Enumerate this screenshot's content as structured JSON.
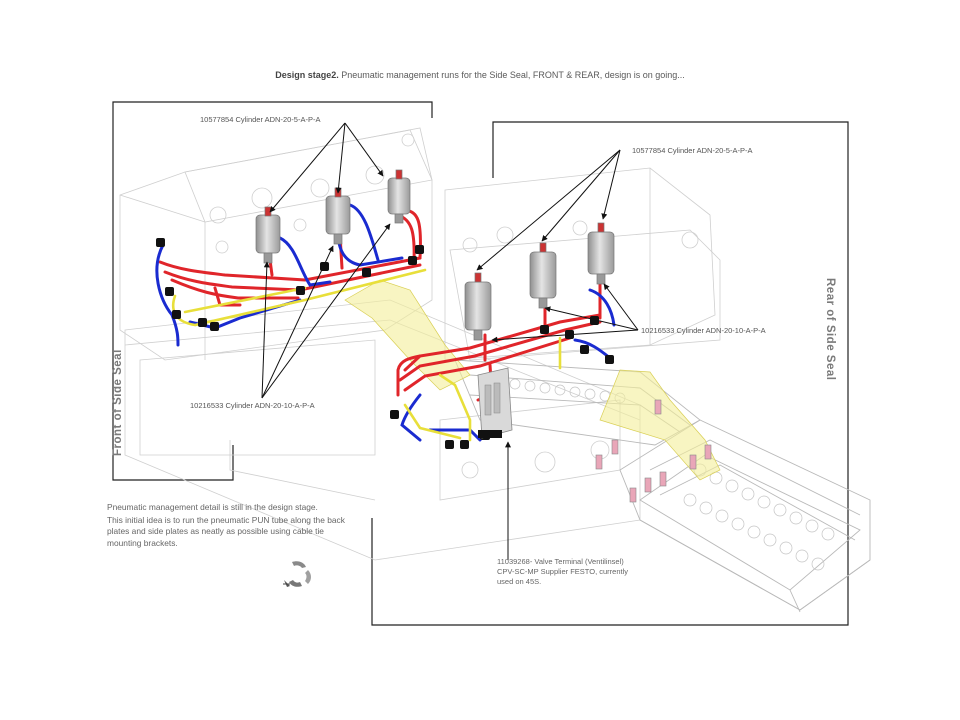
{
  "title": {
    "bold": "Design stage2.",
    "rest": " Pneumatic management runs for the Side Seal, FRONT & REAR, design is on going..."
  },
  "callouts": {
    "front_cyl_top": "10577854 Cylinder ADN-20-5-A-P-A",
    "front_cyl_bottom": "10216533 Cylinder ADN-20-10-A-P-A",
    "rear_cyl_top": "10577854 Cylinder ADN-20-5-A-P-A",
    "rear_cyl_side": "10216533 Cylinder ADN-20-10-A-P-A"
  },
  "side_labels": {
    "front": "Front of Side Seal",
    "rear": "Rear of Side Seal"
  },
  "notes": {
    "line1": "Pneumatic management detail is still in the design stage.",
    "line2": "This initial idea is to run the pneumatic PUN tube along the back plates and side plates as neatly as possible using cable tie mounting brackets."
  },
  "valve_note": {
    "line1": "11039268- Valve Terminal (Ventilinsel)",
    "line2": "CPV-SC-MP Supplier FESTO, currently",
    "line3": "used on 45S."
  },
  "colors": {
    "tube_red": "#e0252a",
    "tube_blue": "#1a2bd0",
    "tube_yellow": "#e8df3a",
    "fitting_black": "#111111",
    "cylinder_grey": "#b8b8b8",
    "frame_line": "#c8c8c8"
  },
  "icons": {
    "logo": "recycle-arrow-logo"
  }
}
